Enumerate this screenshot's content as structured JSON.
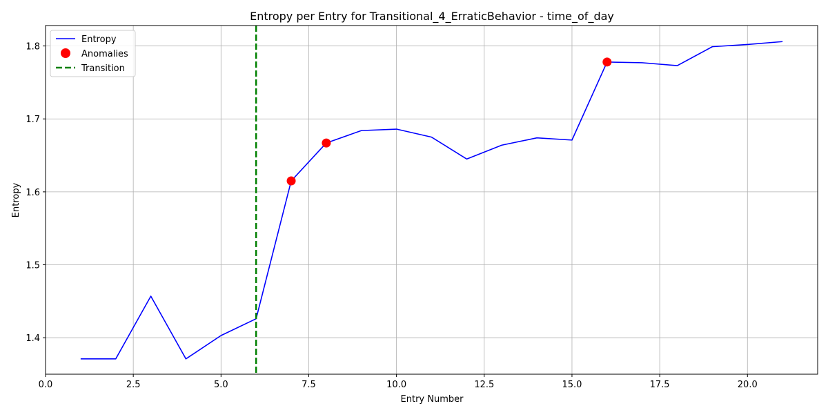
{
  "chart_data": {
    "type": "line",
    "title": "Entropy per Entry for Transitional_4_ErraticBehavior - time_of_day",
    "xlabel": "Entry Number",
    "ylabel": "Entropy",
    "xlim": [
      0,
      22
    ],
    "ylim": [
      1.35,
      1.828
    ],
    "xticks": [
      0,
      2.5,
      5,
      7.5,
      10,
      12.5,
      15,
      17.5,
      20
    ],
    "xtick_labels": [
      "0.0",
      "2.5",
      "5.0",
      "7.5",
      "10.0",
      "12.5",
      "15.0",
      "17.5",
      "20.0"
    ],
    "yticks": [
      1.4,
      1.5,
      1.6,
      1.7,
      1.8
    ],
    "ytick_labels": [
      "1.4",
      "1.5",
      "1.6",
      "1.7",
      "1.8"
    ],
    "grid": true,
    "legend_position": "top-left",
    "series": [
      {
        "name": "Entropy",
        "kind": "line",
        "color": "#0000ff",
        "x": [
          1,
          2,
          3,
          4,
          5,
          6,
          7,
          8,
          9,
          10,
          11,
          12,
          13,
          14,
          15,
          16,
          17,
          18,
          19,
          20,
          21
        ],
        "y": [
          1.371,
          1.371,
          1.457,
          1.371,
          1.403,
          1.426,
          1.615,
          1.667,
          1.684,
          1.686,
          1.675,
          1.645,
          1.664,
          1.674,
          1.671,
          1.778,
          1.777,
          1.773,
          1.799,
          1.802,
          1.806
        ]
      },
      {
        "name": "Anomalies",
        "kind": "scatter",
        "color": "#ff0000",
        "x": [
          7,
          8,
          16
        ],
        "y": [
          1.615,
          1.667,
          1.778
        ]
      },
      {
        "name": "Transition",
        "kind": "vline",
        "color": "#008000",
        "style": "dashed",
        "x": 6
      }
    ]
  }
}
